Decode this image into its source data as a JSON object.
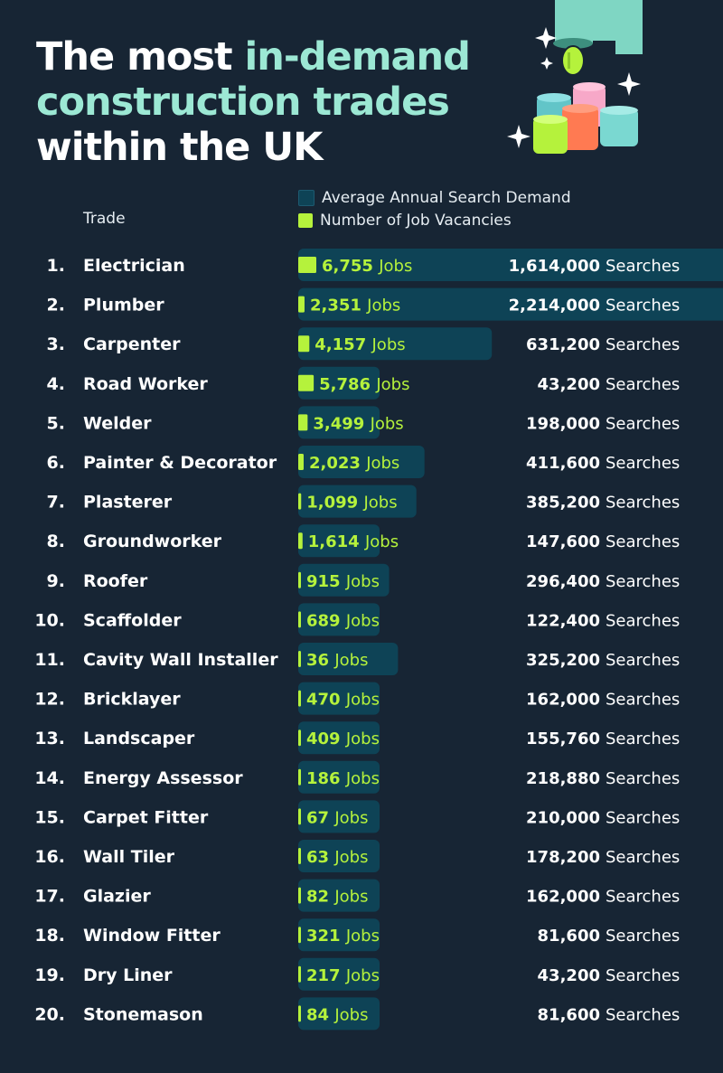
{
  "title": {
    "line1": "The most ",
    "line1_accent": "in-demand",
    "line2": "construction trades",
    "line3": "within the UK"
  },
  "legend": {
    "searches": "Average Annual Search Demand",
    "jobs": "Number of Job Vacancies"
  },
  "column_header": "Trade",
  "colors": {
    "background": "#172534",
    "search_bar": "#0e4356",
    "job_bar": "#b5f23c",
    "title_accent": "#9ce8d4"
  },
  "chart_data": {
    "type": "bar",
    "orientation": "horizontal",
    "units": {
      "jobs": "Jobs",
      "searches": "Searches"
    },
    "categories": [
      "Electrician",
      "Plumber",
      "Carpenter",
      "Road Worker",
      "Welder",
      "Painter & Decorator",
      "Plasterer",
      "Groundworker",
      "Roofer",
      "Scaffolder",
      "Cavity Wall Installer",
      "Bricklayer",
      "Landscaper",
      "Energy Assessor",
      "Carpet Fitter",
      "Wall Tiler",
      "Glazier",
      "Window Fitter",
      "Dry Liner",
      "Stonemason"
    ],
    "ranks": [
      "1.",
      "2.",
      "3.",
      "4.",
      "5.",
      "6.",
      "7.",
      "8.",
      "9.",
      "10.",
      "11.",
      "12.",
      "13.",
      "14.",
      "15.",
      "16.",
      "17.",
      "18.",
      "19.",
      "20."
    ],
    "series": [
      {
        "name": "Number of Job Vacancies",
        "values": [
          6755,
          2351,
          4157,
          5786,
          3499,
          2023,
          1099,
          1614,
          915,
          689,
          36,
          470,
          409,
          186,
          67,
          63,
          82,
          321,
          217,
          84
        ],
        "labels": [
          "6,755",
          "2,351",
          "4,157",
          "5,786",
          "3,499",
          "2,023",
          "1,099",
          "1,614",
          "915",
          "689",
          "36",
          "470",
          "409",
          "186",
          "67",
          "63",
          "82",
          "321",
          "217",
          "84"
        ]
      },
      {
        "name": "Average Annual Search Demand",
        "values": [
          1614000,
          2214000,
          631200,
          43200,
          198000,
          411600,
          385200,
          147600,
          296400,
          122400,
          325200,
          162000,
          155760,
          218880,
          210000,
          178200,
          162000,
          81600,
          43200,
          81600
        ],
        "labels": [
          "1,614,000",
          "2,214,000",
          "631,200",
          "43,200",
          "198,000",
          "411,600",
          "385,200",
          "147,600",
          "296,400",
          "122,400",
          "325,200",
          "162,000",
          "155,760",
          "218,880",
          "210,000",
          "178,200",
          "162,000",
          "81,600",
          "43,200",
          "81,600"
        ]
      }
    ]
  }
}
